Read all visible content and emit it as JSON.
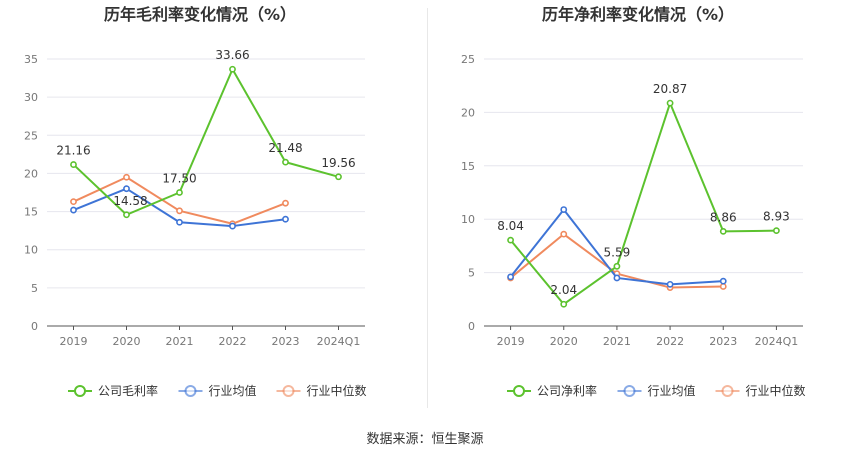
{
  "source": "数据来源：恒生聚源",
  "chart_data": [
    {
      "type": "line",
      "title": "历年毛利率变化情况（%）",
      "categories": [
        "2019",
        "2020",
        "2021",
        "2022",
        "2023",
        "2024Q1"
      ],
      "yticks": [
        0,
        5,
        10,
        15,
        20,
        25,
        30,
        35
      ],
      "ylim": [
        0,
        35
      ],
      "grid": true,
      "legend_position": "bottom",
      "series": [
        {
          "name": "公司毛利率",
          "color": "#5cc22e",
          "values": [
            21.16,
            14.58,
            17.5,
            33.66,
            21.48,
            19.56
          ],
          "labels": [
            "21.16",
            "14.58",
            "17.50",
            "33.66",
            "21.48",
            "19.56"
          ],
          "labeled": true
        },
        {
          "name": "行业均值",
          "color": "#3e74d6",
          "values": [
            15.2,
            18.0,
            13.6,
            13.1,
            14.0,
            null
          ],
          "labeled": false
        },
        {
          "name": "行业中位数",
          "color": "#f08a5e",
          "values": [
            16.3,
            19.5,
            15.1,
            13.4,
            16.1,
            null
          ],
          "labeled": false
        }
      ]
    },
    {
      "type": "line",
      "title": "历年净利率变化情况（%）",
      "categories": [
        "2019",
        "2020",
        "2021",
        "2022",
        "2023",
        "2024Q1"
      ],
      "yticks": [
        0,
        5,
        10,
        15,
        20,
        25
      ],
      "ylim": [
        0,
        25
      ],
      "grid": true,
      "legend_position": "bottom",
      "series": [
        {
          "name": "公司净利率",
          "color": "#5cc22e",
          "values": [
            8.04,
            2.04,
            5.59,
            20.87,
            8.86,
            8.93
          ],
          "labels": [
            "8.04",
            "2.04",
            "5.59",
            "20.87",
            "8.86",
            "8.93"
          ],
          "labeled": true
        },
        {
          "name": "行业均值",
          "color": "#3e74d6",
          "values": [
            4.6,
            10.9,
            4.5,
            3.9,
            4.2,
            null
          ],
          "labeled": false
        },
        {
          "name": "行业中位数",
          "color": "#f08a5e",
          "values": [
            4.5,
            8.6,
            4.9,
            3.6,
            3.7,
            null
          ],
          "labeled": false
        }
      ]
    }
  ]
}
